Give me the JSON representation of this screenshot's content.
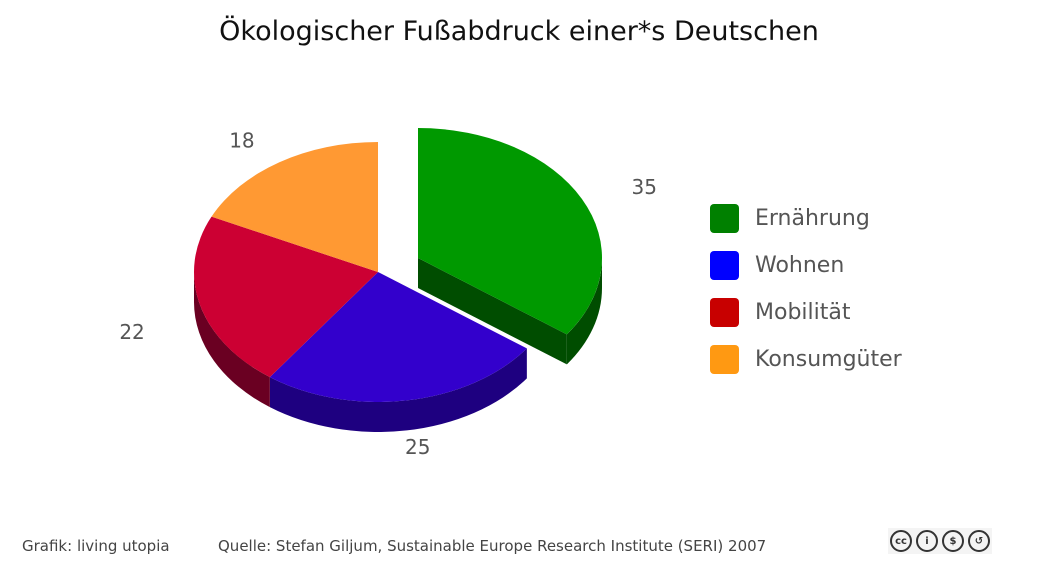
{
  "chart_data": {
    "type": "pie",
    "title": "Ökologischer Fußabdruck einer*s Deutschen",
    "categories": [
      "Ernährung",
      "Wohnen",
      "Mobilität",
      "Konsumgüter"
    ],
    "values": [
      35,
      25,
      22,
      18
    ],
    "slice_colors": [
      "#009900",
      "#3300cc",
      "#cc0033",
      "#ff9933"
    ],
    "side_colors": [
      "#004d00",
      "#1e0080",
      "#6a0022",
      "#b36b1f"
    ],
    "legend_colors": [
      "#008000",
      "#0000ff",
      "#c80000",
      "#ff9912"
    ],
    "exploded": [
      "Ernährung"
    ],
    "legend_position": "right"
  },
  "footer": {
    "credit": "Grafik: living utopia",
    "source": "Quelle: Stefan Giljum, Sustainable Europe Research Institute (SERI) 2007",
    "license_icons": [
      "cc-icon",
      "by-icon",
      "nc-icon",
      "sa-icon"
    ],
    "license_glyphs": [
      "cc",
      "i",
      "$",
      "↺"
    ]
  }
}
